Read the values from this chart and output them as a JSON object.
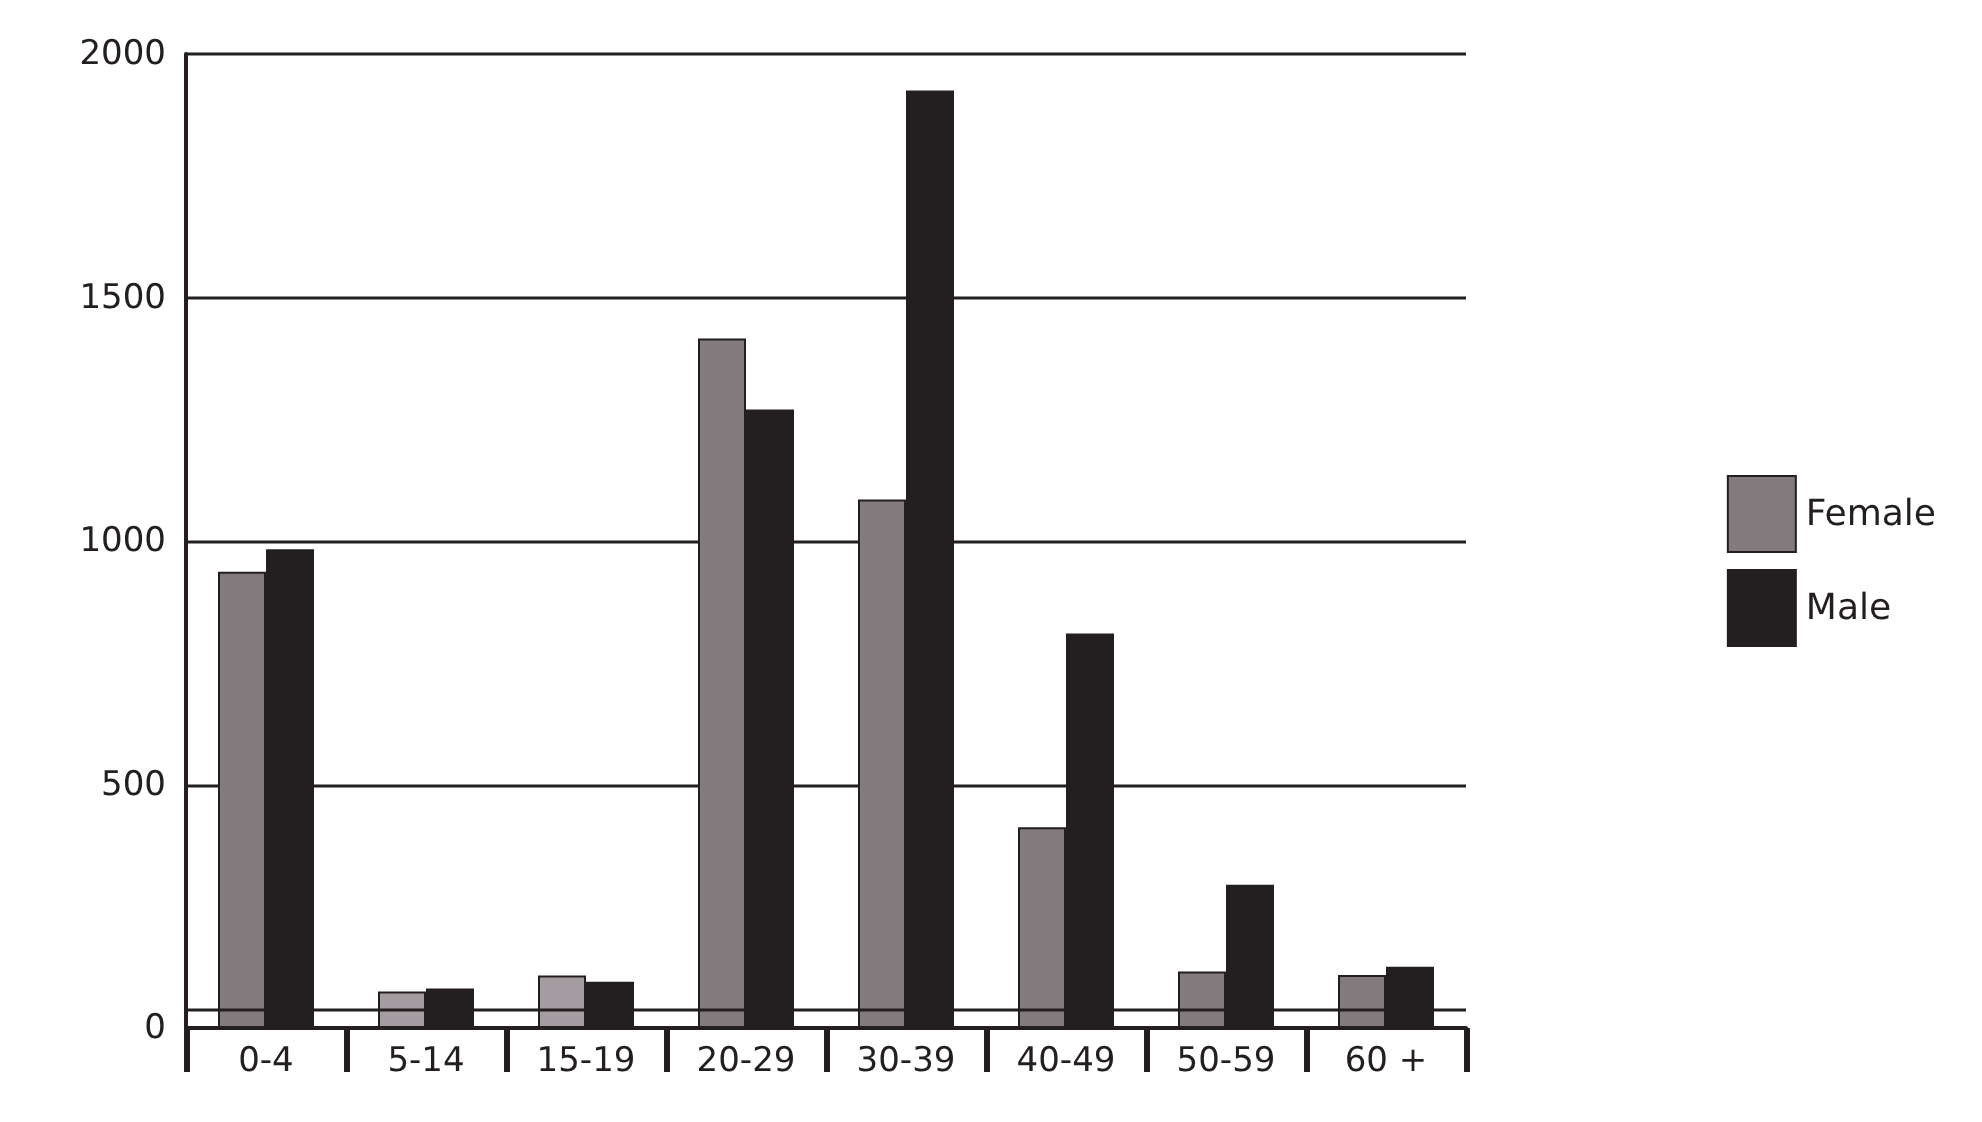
{
  "chart_data": {
    "type": "bar",
    "categories": [
      "0-4",
      "5-14",
      "15-19",
      "20-29",
      "30-39",
      "40-49",
      "50-59",
      "60 +"
    ],
    "series": [
      {
        "name": "Female",
        "color": "#827b7e",
        "colors": [
          "#827b7e",
          "#a59ca1",
          "#a59ca1",
          "#827b7e",
          "#827b7e",
          "#827b7e",
          "#827b7e",
          "#827b7e"
        ],
        "values": [
          937,
          75,
          108,
          1416,
          1085,
          412,
          116,
          109
        ]
      },
      {
        "name": "Male",
        "color": "#231f20",
        "values": [
          983,
          81,
          95,
          1270,
          1925,
          810,
          294,
          126
        ]
      }
    ],
    "ylim": [
      0,
      2000
    ],
    "yticks": [
      0,
      500,
      1000,
      1500,
      2000
    ],
    "grid": "y",
    "legend": "right",
    "ref_lines": [
      {
        "axis": "y",
        "value": 40,
        "color": "#231f20"
      }
    ]
  }
}
